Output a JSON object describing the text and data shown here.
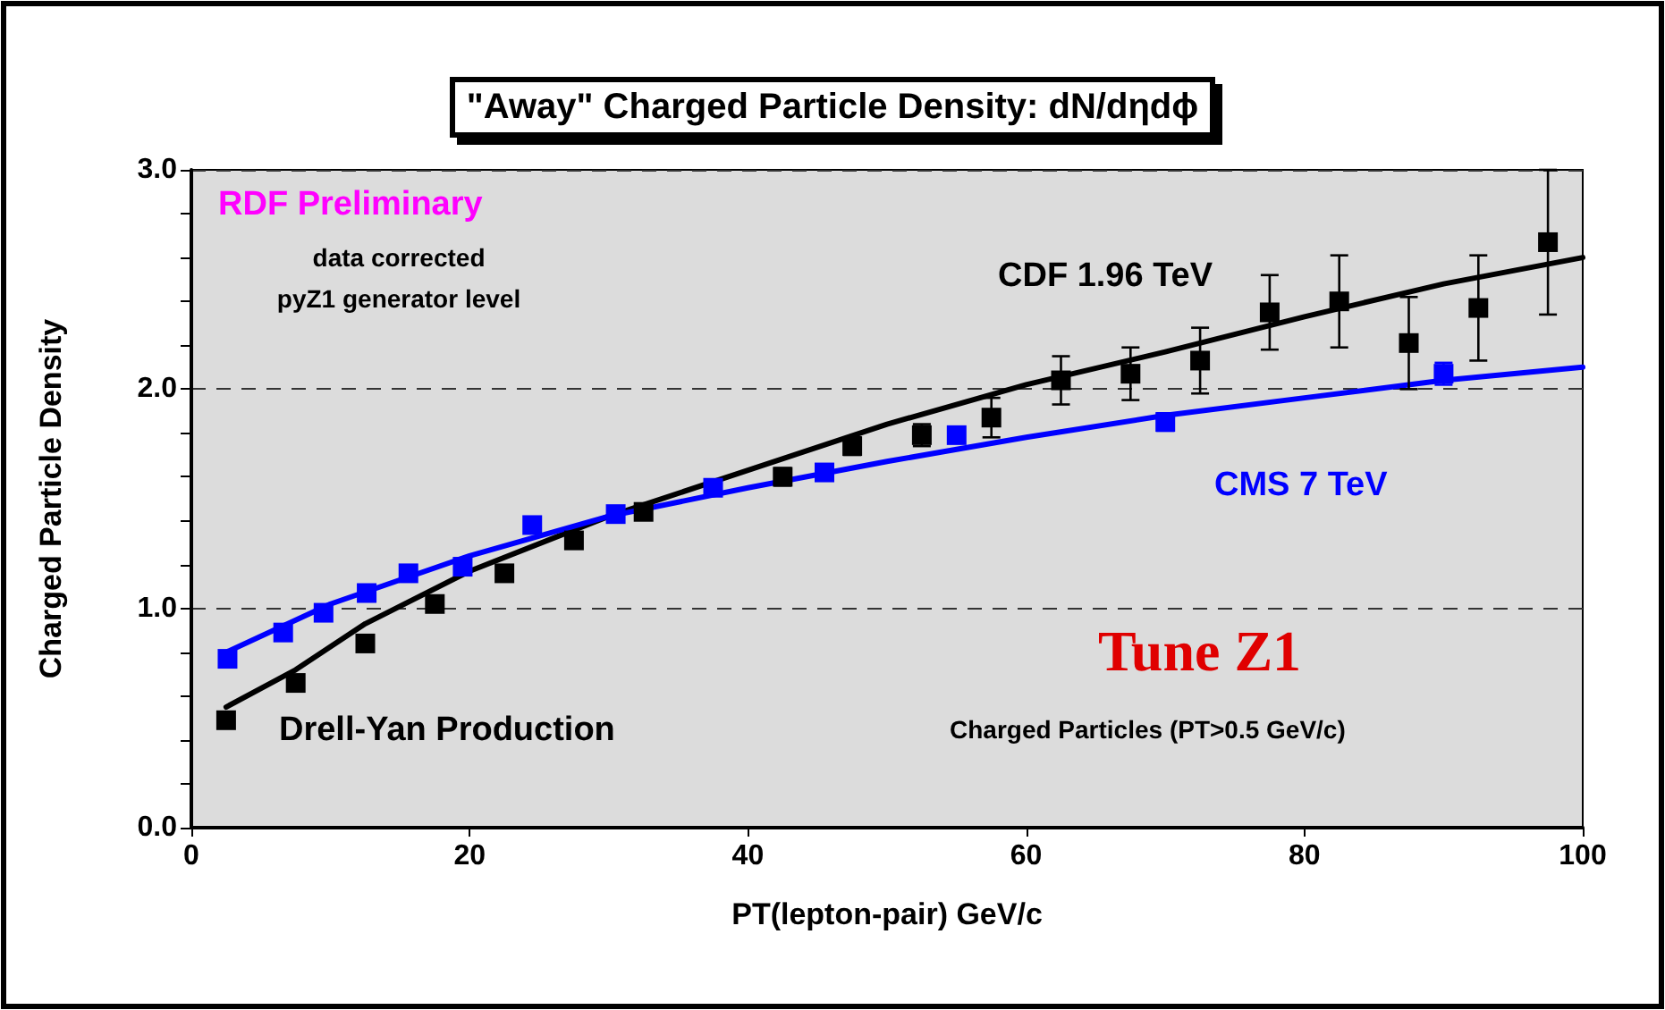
{
  "chart_data": {
    "type": "scatter",
    "title": "\"Away\" Charged Particle Density: dN/dηdϕ",
    "xlabel": "PT(lepton-pair) GeV/c",
    "ylabel": "Charged Particle Density",
    "annotations": [
      "RDF Preliminary",
      "data corrected",
      "pyZ1 generator level",
      "Drell-Yan Production",
      "Tune Z1",
      "Charged Particles (PT>0.5 GeV/c)"
    ],
    "xlim": [
      0,
      100
    ],
    "xticks": [
      0,
      20,
      40,
      60,
      80,
      100
    ],
    "ylim": [
      0,
      3
    ],
    "yticks": [
      {
        "value": 0,
        "label": "0.0"
      },
      {
        "value": 1,
        "label": "1.0"
      },
      {
        "value": 2,
        "label": "2.0"
      },
      {
        "value": 3,
        "label": "3.0"
      }
    ],
    "grid": "y",
    "legend": false,
    "marker": "square",
    "series": [
      {
        "name": "CDF 1.96 TeV",
        "color": "#000000",
        "x": [
          2.5,
          7.5,
          12.5,
          17.5,
          22.5,
          27.5,
          32.5,
          37.5,
          42.5,
          47.5,
          52.5,
          57.5,
          62.5,
          67.5,
          72.5,
          77.5,
          82.5,
          87.5,
          92.5,
          97.5
        ],
        "values": [
          0.49,
          0.66,
          0.84,
          1.02,
          1.16,
          1.31,
          1.44,
          null,
          1.6,
          1.74,
          1.79,
          1.87,
          2.04,
          2.07,
          2.13,
          2.35,
          2.4,
          2.21,
          2.37,
          2.67
        ],
        "errors": [
          null,
          null,
          null,
          null,
          null,
          null,
          null,
          null,
          0.04,
          0.04,
          0.05,
          0.09,
          0.11,
          0.12,
          0.15,
          0.17,
          0.21,
          0.21,
          0.24,
          0.33
        ]
      },
      {
        "name": "CMS 7 TeV",
        "color": "#0000ff",
        "x": [
          2.6,
          6.6,
          9.5,
          12.6,
          15.6,
          19.5,
          24.5,
          30.5,
          37.5,
          45.5,
          55,
          70,
          90
        ],
        "values": [
          0.77,
          0.89,
          0.98,
          1.07,
          1.16,
          1.19,
          1.38,
          1.43,
          1.55,
          1.62,
          1.79,
          1.85,
          2.07
        ],
        "errors": [
          null,
          null,
          null,
          null,
          null,
          null,
          null,
          null,
          null,
          null,
          null,
          0.04,
          0.05
        ]
      },
      {
        "type": "line",
        "color": "#000000",
        "marker": "none",
        "x": [
          2.5,
          7.5,
          12.5,
          20,
          30,
          40,
          50,
          60,
          70,
          80,
          90,
          100
        ],
        "values": [
          0.55,
          0.72,
          0.93,
          1.17,
          1.42,
          1.63,
          1.84,
          2.02,
          2.17,
          2.33,
          2.48,
          2.6
        ]
      },
      {
        "type": "line",
        "color": "#0000ff",
        "marker": "none",
        "x": [
          2.5,
          10,
          20,
          30,
          40,
          50,
          60,
          70,
          80,
          90,
          100
        ],
        "values": [
          0.8,
          1.02,
          1.24,
          1.42,
          1.55,
          1.67,
          1.78,
          1.88,
          1.96,
          2.04,
          2.1
        ]
      }
    ]
  }
}
